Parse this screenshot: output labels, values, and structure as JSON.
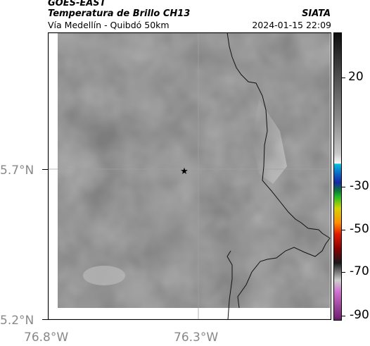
{
  "header": {
    "satellite": "GOES-EAST",
    "product": "Temperatura de Brillo CH13",
    "region": "Vía Medellín - Quibdó 50km",
    "agency": "SIATA",
    "datetime": "2024-01-15 22:09"
  },
  "axes": {
    "x_ticks": [
      "76.8°W",
      "76.3°W"
    ],
    "y_ticks": [
      "5.7°N",
      "5.2°N"
    ]
  },
  "colorbar": {
    "ticks": [
      "20",
      "-30",
      "-50",
      "-70",
      "-90"
    ],
    "colors": [
      "#111111",
      "#444444",
      "#777777",
      "#aaaaaa",
      "#dddddd",
      "#ffffff",
      "#00b7d6",
      "#1533c8",
      "#00aa33",
      "#cccc00",
      "#ff8800",
      "#dd1100",
      "#222222",
      "#bbbbbb",
      "#cc44cc",
      "#7a1f7a"
    ]
  },
  "map": {
    "background_color": "#7f7f7f",
    "marker": "star-icon"
  }
}
